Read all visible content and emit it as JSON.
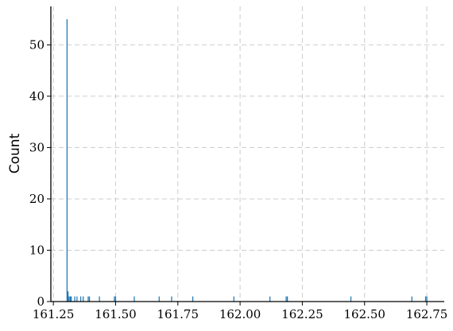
{
  "chart_data": {
    "type": "bar",
    "title": "",
    "xlabel": "",
    "ylabel": "Count",
    "xlim": [
      161.24,
      162.82
    ],
    "ylim": [
      0,
      57.5
    ],
    "grid": true,
    "x_ticks": [
      161.25,
      161.5,
      161.75,
      162.0,
      162.25,
      162.5,
      162.75
    ],
    "x_tick_labels": [
      "161.25",
      "161.50",
      "161.75",
      "162.00",
      "162.25",
      "162.50",
      "162.75"
    ],
    "y_ticks": [
      0,
      10,
      20,
      30,
      40,
      50
    ],
    "y_tick_labels": [
      "0",
      "10",
      "20",
      "30",
      "40",
      "50"
    ],
    "bar_color": "#1f77b4",
    "bins": [
      {
        "x": 161.305,
        "count": 55
      },
      {
        "x": 161.309,
        "count": 2
      },
      {
        "x": 161.313,
        "count": 1
      },
      {
        "x": 161.318,
        "count": 1
      },
      {
        "x": 161.322,
        "count": 1
      },
      {
        "x": 161.336,
        "count": 1
      },
      {
        "x": 161.345,
        "count": 1
      },
      {
        "x": 161.36,
        "count": 1
      },
      {
        "x": 161.37,
        "count": 1
      },
      {
        "x": 161.39,
        "count": 1
      },
      {
        "x": 161.395,
        "count": 1
      },
      {
        "x": 161.435,
        "count": 1
      },
      {
        "x": 161.495,
        "count": 1
      },
      {
        "x": 161.5,
        "count": 1
      },
      {
        "x": 161.575,
        "count": 1
      },
      {
        "x": 161.675,
        "count": 1
      },
      {
        "x": 161.725,
        "count": 1
      },
      {
        "x": 161.81,
        "count": 1
      },
      {
        "x": 161.975,
        "count": 1
      },
      {
        "x": 162.12,
        "count": 1
      },
      {
        "x": 162.185,
        "count": 1
      },
      {
        "x": 162.19,
        "count": 1
      },
      {
        "x": 162.445,
        "count": 1
      },
      {
        "x": 162.69,
        "count": 1
      },
      {
        "x": 162.745,
        "count": 1
      },
      {
        "x": 162.75,
        "count": 1
      }
    ]
  }
}
